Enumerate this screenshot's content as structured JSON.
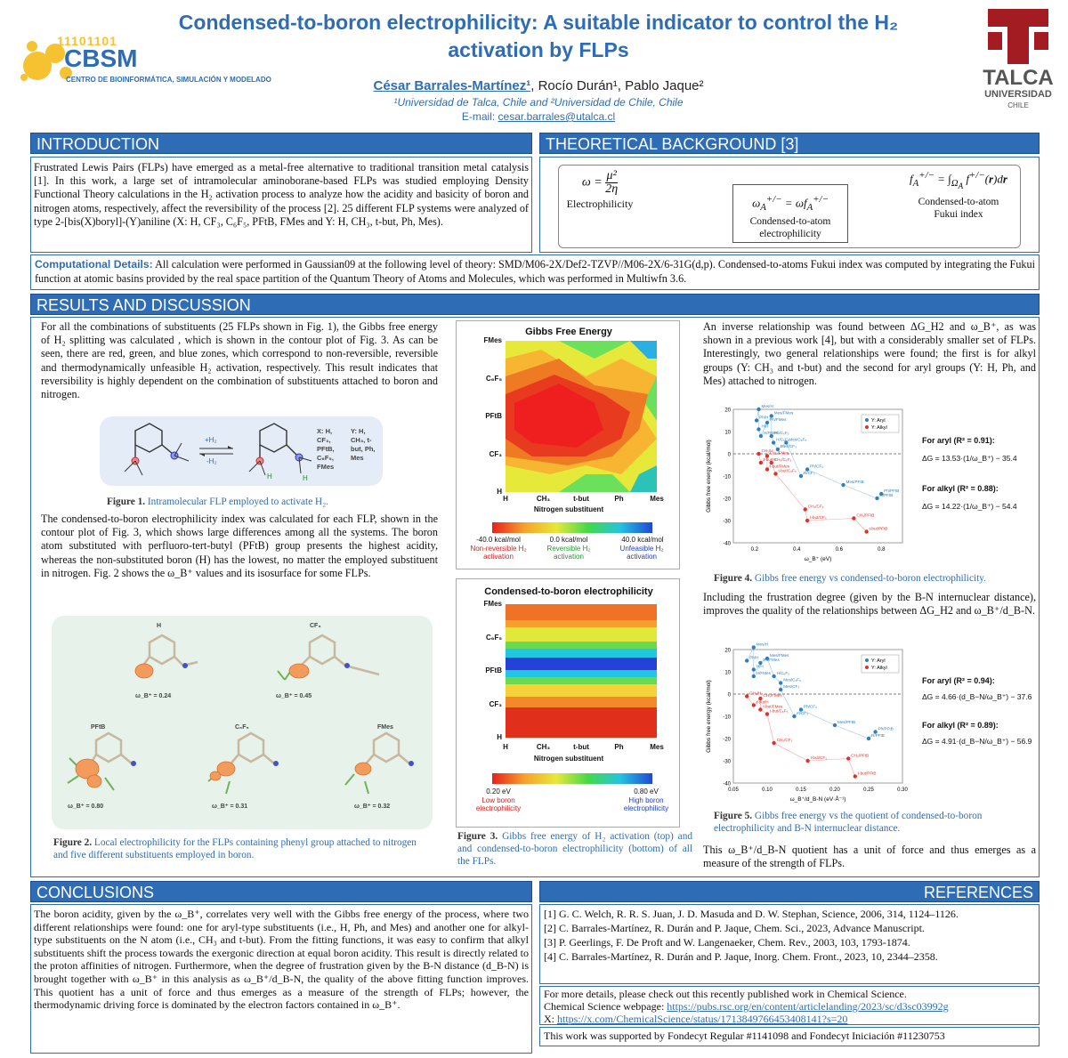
{
  "header": {
    "title": "Condensed-to-boron electrophilicity: A suitable indicator to control the H₂ activation by FLPs",
    "authors_lead": "César Barrales-Martínez¹",
    "authors_rest": ", Rocío Durán¹, Pablo Jaque²",
    "affiliations": "¹Universidad de Talca, Chile and ²Universidad de Chile, Chile",
    "email_label": "E-mail: ",
    "email": "cesar.barrales@utalca.cl",
    "logo_left_code": "11101101",
    "logo_left_name": "CBSM",
    "logo_left_sub": "CENTRO DE BIOINFORMÁTICA, SIMULACIÓN Y MODELADO",
    "logo_right_name": "TALCA",
    "logo_right_sub1": "UNIVERSIDAD",
    "logo_right_sub2": "CHILE",
    "brand_color": "#2e6db5",
    "talca_red": "#a31c22"
  },
  "introduction": {
    "heading": "INTRODUCTION",
    "text": "Frustrated Lewis Pairs (FLPs) have emerged as a metal-free alternative to traditional transition metal catalysis [1]. In this work, a large set of intramolecular aminoborane-based FLPs was studied employing Density Functional Theory calculations in the H₂ activation process to analyze how the acidity and basicity of boron and nitrogen atoms, respectively, affect the reversibility of the process [2]. 25 different FLP systems were analyzed of type 2-[bis(X)boryl]-(Y)aniline (X: H, CF₃, C₆F₅, PFtB, FMes and Y: H, CH₃, t-but, Ph, Mes)."
  },
  "theory": {
    "heading": "THEORETICAL BACKGROUND [3]",
    "eq1_label": "Electrophilicity",
    "eq2_label": "Condensed-to-atom electrophilicity",
    "eq3_label": "Condensed-to-atom Fukui index"
  },
  "computational": {
    "label": "Computational Details:",
    "text": " All calculation were performed in Gaussian09 at the following level of theory: SMD/M06-2X/Def2-TZVP//M06-2X/6-31G(d,p). Condensed-to-atoms Fukui index was computed by integrating the Fukui function at atomic basins provided by the real space partition of the Quantum Theory of Atoms and Molecules, which was performed in Multiwfn 3.6."
  },
  "results": {
    "heading": "RESULTS AND DISCUSSION",
    "p1": "For all the combinations of substituents (25 FLPs shown in Fig. 1), the Gibbs free energy of H₂ splitting was calculated , which is shown in the contour plot of Fig. 3. As can be seen, there are red, green, and blue zones, which correspond to non-reversible, reversible and thermodynamically unfeasible H₂ activation, respectively. This result indicates that reversibility is highly dependent on the combination of substituents attached to boron and nitrogen.",
    "fig1_caption_label": "Figure 1.",
    "fig1_caption": " Intramolecular FLP employed to activate H₂.",
    "fig1_x_list": "X: H, CF₃, PFtB, C₆F₅, FMes",
    "fig1_y_list": "Y: H, CH₃, t-but, Ph, Mes",
    "fig1_plus": "+H₂",
    "fig1_minus": "-H₂",
    "p2": "The condensed-to-boron electrophilicity index was calculated for each FLP, shown in the contour plot of Fig. 3, which shows large differences among all the systems. The boron atom substituted with perfluoro-tert-butyl (PFtB) group presents the highest acidity, whereas the non-substituted boron (H) has the lowest, no matter the employed substituent in nitrogen. Fig. 2 shows the ω_B⁺ values and its isosurface for some FLPs.",
    "fig2_caption_label": "Figure 2.",
    "fig2_caption": " Local electrophilicity for the FLPs containing phenyl group attached to nitrogen and five different substituents employed in boron.",
    "fig2_labels": [
      "H",
      "CF₃",
      "PFtB",
      "C₆F₅",
      "FMes"
    ],
    "fig2_values": [
      "ω_B⁺ = 0.24",
      "ω_B⁺ = 0.45",
      "ω_B⁺ = 0.80",
      "ω_B⁺ = 0.31",
      "ω_B⁺ = 0.32"
    ],
    "fig3_caption_label": "Figure 3.",
    "fig3_caption": " Gibbs free energy of H₂ activation (top) and and condensed-to-boron electrophilicity (bottom) of all the FLPs.",
    "p3": "An inverse relationship was found between ΔG_H2 and ω_B⁺, as was shown in a previous work [4], but with a considerably smaller set of FLPs. Interestingly, two general relationships were found; the first is for alkyl groups (Y: CH₃ and t-but) and the second for aryl groups (Y: H, Ph, and Mes) attached to nitrogen.",
    "fig4_caption_label": "Figure 4.",
    "fig4_caption": " Gibbs free energy vs condensed-to-boron electrophilicity.",
    "p4": "Including the frustration degree (given by the B-N internuclear distance), improves the quality of the relationships between ΔG_H2 and ω_B⁺/d_B-N.",
    "fig5_caption_label": "Figure 5.",
    "fig5_caption": " Gibbs free energy vs the quotient of condensed-to-boron electrophilicity and B-N internuclear distance.",
    "p5": "This ω_B⁺/d_B-N quotient has a unit of force and thus emerges as a measure of the strength of FLPs.",
    "fig4_fit_aryl": "For aryl (R² = 0.91):",
    "fig4_fit_aryl_eq": "ΔG = 13.53·(1/ω_B⁺) − 35.4",
    "fig4_fit_alkyl": "For alkyl (R² = 0.88):",
    "fig4_fit_alkyl_eq": "ΔG = 14.22·(1/ω_B⁺) − 54.4",
    "fig5_fit_aryl": "For aryl (R² = 0.94):",
    "fig5_fit_aryl_eq": "ΔG = 4.66·(d_B−N/ω_B⁺) − 37.6",
    "fig5_fit_alkyl": "For alkyl (R² = 0.89):",
    "fig5_fit_alkyl_eq": "ΔG = 4.91·(d_B−N/ω_B⁺) − 56.9"
  },
  "chart_data": [
    {
      "type": "heatmap",
      "title": "Gibbs Free Energy",
      "xlabel": "Nitrogen substituent",
      "x_categories": [
        "H",
        "CH₃",
        "t-but",
        "Ph",
        "Mes"
      ],
      "y_categories": [
        "H",
        "CF₃",
        "PFtB",
        "C₆F₅",
        "FMes"
      ],
      "legend": [
        {
          "value": "-40.0 kcal/mol",
          "label": "Non-reversible H₂ activation",
          "color": "#d62020"
        },
        {
          "value": "0.0 kcal/mol",
          "label": "Reversible H₂ activation",
          "color": "#1f9a2a"
        },
        {
          "value": "40.0 kcal/mol",
          "label": "Unfeasible H₂ activation",
          "color": "#1f3fbf"
        }
      ]
    },
    {
      "type": "heatmap",
      "title": "Condensed-to-boron electrophilicity",
      "xlabel": "Nitrogen substituent",
      "x_categories": [
        "H",
        "CH₃",
        "t-but",
        "Ph",
        "Mes"
      ],
      "y_categories": [
        "H",
        "CF₃",
        "PFtB",
        "C₆F₅",
        "FMes"
      ],
      "legend": [
        {
          "value": "0.20 eV",
          "label": "Low boron electrophilicity",
          "color": "#d62020"
        },
        {
          "value": "0.80 eV",
          "label": "High boron electrophilicity",
          "color": "#1f3fbf"
        }
      ]
    },
    {
      "type": "scatter",
      "xlabel": "ω_B⁺ (eV)",
      "ylabel": "Gibbs free energy (kcal/mol)",
      "xlim": [
        0.1,
        0.9
      ],
      "ylim": [
        -40,
        20
      ],
      "x_ticks": [
        "0.2",
        "0.4",
        "0.6",
        "0.8"
      ],
      "y_ticks": [
        "20",
        "10",
        "0",
        "-10",
        "-20",
        "-30",
        "-40"
      ],
      "legend_position": "top-right",
      "series": [
        {
          "name": "Y: Aryl",
          "color": "#2e7fc0",
          "points": [
            [
              0.22,
              20,
              "Mes/H"
            ],
            [
              0.28,
              17,
              "Mes/FMes"
            ],
            [
              0.21,
              15,
              "Ph/H"
            ],
            [
              0.26,
              14,
              "Ph/FMes"
            ],
            [
              0.22,
              11,
              "H/H"
            ],
            [
              0.23,
              8,
              "H/FMes"
            ],
            [
              0.28,
              8,
              "Ph/C₆F₅"
            ],
            [
              0.29,
              5,
              "H/C₆F₅"
            ],
            [
              0.35,
              5,
              "Mes/C₆F₅"
            ],
            [
              0.31,
              2,
              "Mes/CF₃"
            ],
            [
              0.45,
              -7,
              "Ph/CF₃"
            ],
            [
              0.42,
              -10,
              "H/CF₃"
            ],
            [
              0.62,
              -14,
              "Mes/PFtB"
            ],
            [
              0.8,
              -18,
              "Ph/PFtB"
            ],
            [
              0.78,
              -20,
              "H/PFtB"
            ]
          ]
        },
        {
          "name": "Y: Alkyl",
          "color": "#e0302a",
          "points": [
            [
              0.22,
              0,
              "CH₃/H"
            ],
            [
              0.26,
              -1,
              "CH₃/FMes"
            ],
            [
              0.23,
              -4,
              "t-but/H"
            ],
            [
              0.28,
              -4,
              "CH₃/C₆F₅"
            ],
            [
              0.26,
              -7,
              "t-but/FMes"
            ],
            [
              0.3,
              -9,
              "t-but/C₆F₅"
            ],
            [
              0.44,
              -25,
              "CH₃/CF₃"
            ],
            [
              0.45,
              -30,
              "t-but/CF₃"
            ],
            [
              0.67,
              -29,
              "CH₃/PFtB"
            ],
            [
              0.73,
              -35,
              "t-but/PFtB"
            ]
          ]
        }
      ]
    },
    {
      "type": "scatter",
      "xlabel": "ω_B⁺/d_B-N (eV·Å⁻¹)",
      "ylabel": "Gibbs free energy (kcal/mol)",
      "xlim": [
        0.05,
        0.3
      ],
      "ylim": [
        -40,
        20
      ],
      "x_ticks": [
        "0.05",
        "0.10",
        "0.15",
        "0.20",
        "0.25",
        "0.30"
      ],
      "y_ticks": [
        "20",
        "10",
        "0",
        "-10",
        "-20",
        "-30",
        "-40"
      ],
      "legend_position": "top-right",
      "series": [
        {
          "name": "Y: Aryl",
          "color": "#2e7fc0",
          "points": [
            [
              0.08,
              21,
              "Mes/H"
            ],
            [
              0.1,
              16,
              "Mes/FMes"
            ],
            [
              0.07,
              15,
              "Ph/H"
            ],
            [
              0.09,
              14,
              "Ph/FMes"
            ],
            [
              0.08,
              11,
              "H/H"
            ],
            [
              0.08,
              8,
              "H/FMes"
            ],
            [
              0.11,
              8,
              "H/C₆F₅"
            ],
            [
              0.12,
              5,
              "Mes/C₆F₅"
            ],
            [
              0.12,
              2,
              "Mes/CF₃"
            ],
            [
              0.15,
              -7,
              "Ph/CF₃"
            ],
            [
              0.14,
              -10,
              "H/CF₃"
            ],
            [
              0.2,
              -14,
              "Mes/PFtB"
            ],
            [
              0.26,
              -17,
              "Ph/PFtB"
            ],
            [
              0.25,
              -20,
              "H/PFtB"
            ]
          ]
        },
        {
          "name": "Y: Alkyl",
          "color": "#e0302a",
          "points": [
            [
              0.07,
              -1,
              "CH₃/H"
            ],
            [
              0.09,
              -2,
              "CH₃/FMes"
            ],
            [
              0.08,
              -5,
              "t-but/H"
            ],
            [
              0.09,
              -7,
              "t-but/FMes"
            ],
            [
              0.1,
              -9,
              "t-but/C₆F₅"
            ],
            [
              0.11,
              -22,
              "CH₃/CF₃"
            ],
            [
              0.16,
              -30,
              "t-but/CF₃"
            ],
            [
              0.22,
              -29,
              "CH₃/PFtB"
            ],
            [
              0.23,
              -37,
              "t-but/PFtB"
            ]
          ]
        }
      ]
    }
  ],
  "conclusions": {
    "heading": "CONCLUSIONS",
    "text": "The boron acidity, given by the ω_B⁺, correlates very well with the Gibbs free energy of the process, where two different relationships were found: one for aryl-type substituents (i.e., H, Ph, and Mes) and another one for alkyl-type substituents on the N atom (i.e., CH₃ and t-but). From the fitting functions, it was easy to confirm that alkyl substituents shift the process towards the exergonic direction at equal boron acidity. This result is directly related to the proton affinities of nitrogen. Furthermore, when the degree of frustration given by the B-N distance (d_B-N) is brought together with ω_B⁺ in this analysis as ω_B⁺/d_B-N, the quality of the above fitting function improves. This quotient has a unit of force and thus emerges as a measure of the strength of FLPs; however, the thermodynamic driving force is dominated by the electron factors contained in ω_B⁺."
  },
  "references": {
    "heading": "REFERENCES",
    "items": [
      "[1] G. C. Welch, R. R. S. Juan, J. D. Masuda and D. W. Stephan, Science, 2006, 314, 1124–1126.",
      "[2] C. Barrales-Martínez, R. Durán and P. Jaque, Chem. Sci., 2023, Advance Manuscript.",
      "[3] P. Geerlings, F. De Proft and W. Langenaeker, Chem. Rev., 2003, 103, 1793-1874.",
      "[4] C. Barrales-Martínez, R. Durán and P. Jaque, Inorg. Chem. Front., 2023, 10, 2344–2358."
    ],
    "more_details": "For more details, please check out this recently published work in Chemical Science.",
    "webpage_label": "Chemical Science webpage: ",
    "webpage_url": "https://pubs.rsc.org/en/content/articlelanding/2023/sc/d3sc03992g",
    "x_label": "X: ",
    "x_url": "https://x.com/ChemicalScience/status/1713849766453408141?s=20",
    "funding": "This work was supported by Fondecyt Regular #1141098 and Fondecyt Iniciación #11230753"
  }
}
